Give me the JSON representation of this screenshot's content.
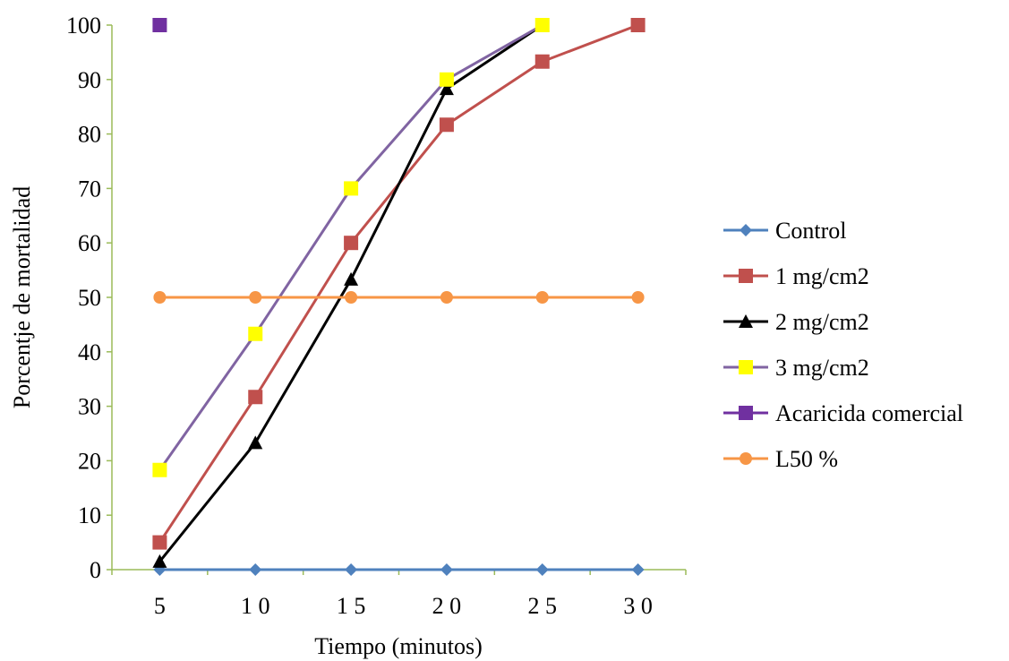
{
  "chart_data": {
    "type": "line",
    "title": "",
    "xlabel": "Tiempo  (minutos)",
    "ylabel": "Porcentje de mortalidad",
    "categories": [
      "5",
      "10",
      "15",
      "20",
      "25",
      "30"
    ],
    "x_tick_labels": [
      "5",
      "1 0",
      "1 5",
      "2 0",
      "2 5",
      "3 0"
    ],
    "ylim": [
      0,
      100
    ],
    "yticks": [
      0,
      10,
      20,
      30,
      40,
      50,
      60,
      70,
      80,
      90,
      100
    ],
    "grid": false,
    "legend_position": "right",
    "axis_color": "#9BBB59",
    "series": [
      {
        "name": "Control",
        "values": [
          0,
          0,
          0,
          0,
          0,
          0
        ],
        "color": "#4F81BD",
        "marker": "diamond",
        "marker_color": "#4F81BD"
      },
      {
        "name": "1 mg/cm2",
        "values": [
          5,
          31.7,
          60,
          81.7,
          93.3,
          100
        ],
        "color": "#C0504D",
        "marker": "square",
        "marker_color": "#C0504D"
      },
      {
        "name": "2 mg/cm2",
        "values": [
          1.5,
          23.3,
          53.3,
          88.3,
          100,
          null
        ],
        "color": "#000000",
        "marker": "triangle",
        "marker_color": "#000000"
      },
      {
        "name": "3 mg/cm2",
        "values": [
          18.3,
          43.3,
          70,
          90,
          100,
          null
        ],
        "color": "#8064A2",
        "marker": "square",
        "marker_color": "#FFFF00"
      },
      {
        "name": "Acaricida comercial",
        "values": [
          100,
          null,
          null,
          null,
          null,
          null
        ],
        "color": "#7030A0",
        "marker": "square",
        "marker_color": "#7030A0"
      },
      {
        "name": "L50 %",
        "values": [
          50,
          50,
          50,
          50,
          50,
          50
        ],
        "color": "#F79646",
        "marker": "circle",
        "marker_color": "#F79646"
      }
    ]
  }
}
